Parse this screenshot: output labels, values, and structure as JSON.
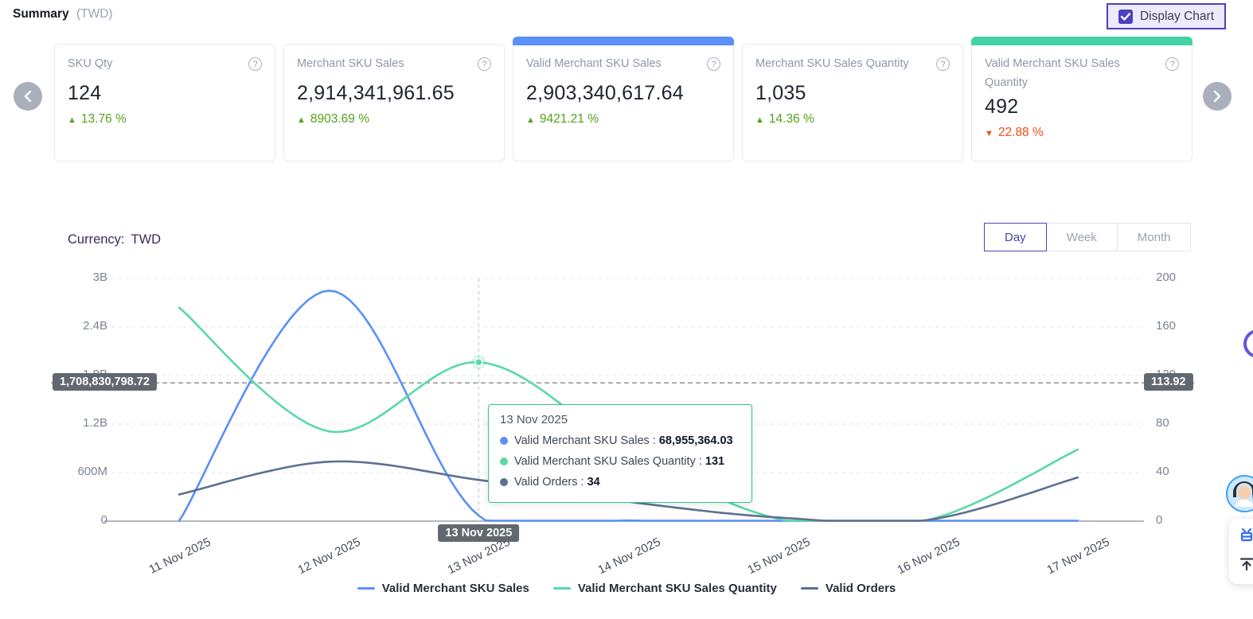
{
  "header": {
    "title": "Summary",
    "currency_suffix": "(TWD)",
    "display_chart_label": "Display Chart",
    "display_chart_checked": true
  },
  "theme": {
    "accent_purple": "#4b40c2",
    "blue": "#5B8FF9",
    "green": "#5AD8A6",
    "slate": "#5D7092",
    "up_green": "#53a318",
    "down_red": "#f04e12",
    "badge_gray": "#62686f",
    "tooltip_border": "#36c392"
  },
  "cards": [
    {
      "title": "SKU Qty",
      "value": "124",
      "arrow": "▲",
      "delta": "13.76 %",
      "direction": "up",
      "accent": ""
    },
    {
      "title": "Merchant SKU Sales",
      "value": "2,914,341,961.65",
      "arrow": "▲",
      "delta": "8903.69 %",
      "direction": "up",
      "accent": ""
    },
    {
      "title": "Valid Merchant SKU Sales",
      "value": "2,903,340,617.64",
      "arrow": "▲",
      "delta": "9421.21 %",
      "direction": "up",
      "accent": "#5B8FF9"
    },
    {
      "title": "Merchant SKU Sales Quantity",
      "value": "1,035",
      "arrow": "▲",
      "delta": "14.36 %",
      "direction": "up",
      "accent": ""
    },
    {
      "title": "Valid Merchant SKU Sales Quantity",
      "value": "492",
      "arrow": "▼",
      "delta": "22.88 %",
      "direction": "down",
      "accent": "#42d3a5"
    }
  ],
  "help_icon": "?",
  "chart_controls": {
    "currency_label": "Currency:",
    "currency_value": "TWD",
    "granularity": [
      {
        "label": "Day",
        "active": true
      },
      {
        "label": "Week",
        "active": false
      },
      {
        "label": "Month",
        "active": false
      }
    ]
  },
  "chart_data": {
    "type": "line",
    "x": [
      "11 Nov 2025",
      "12 Nov 2025",
      "13 Nov 2025",
      "14 Nov 2025",
      "15 Nov 2025",
      "16 Nov 2025",
      "17 Nov 2025"
    ],
    "series": [
      {
        "name": "Valid Merchant SKU Sales",
        "axis": "left",
        "color": "#5B8FF9",
        "values": [
          0,
          2850000000,
          68955364.03,
          8000000,
          3000000,
          2000000,
          5000000
        ]
      },
      {
        "name": "Valid Merchant SKU Sales Quantity",
        "axis": "right",
        "color": "#5AD8A6",
        "values": [
          176,
          74,
          131,
          57,
          2,
          1,
          59
        ],
        "marker_index": 2
      },
      {
        "name": "Valid Orders",
        "axis": "right",
        "color": "#5D7092",
        "values": [
          22,
          49,
          34,
          16,
          3,
          1,
          36
        ]
      }
    ],
    "left_axis": {
      "ticks": [
        "0",
        "600M",
        "1.2B",
        "1.8B",
        "2.4B",
        "3B"
      ],
      "max": 3000000000
    },
    "right_axis": {
      "ticks": [
        "0",
        "40",
        "80",
        "120",
        "160",
        "200"
      ],
      "max": 200
    },
    "grid": "dashed",
    "legend_position": "bottom"
  },
  "crosshair": {
    "left_value": "1,708,830,798.72",
    "right_value": "113.92",
    "date": "13 Nov 2025"
  },
  "tooltip": {
    "date": "13 Nov 2025",
    "rows": [
      {
        "label": "Valid Merchant SKU Sales",
        "value": "68,955,364.03",
        "color": "#5B8FF9"
      },
      {
        "label": "Valid Merchant SKU Sales Quantity",
        "value": "131",
        "color": "#5AD8A6"
      },
      {
        "label": "Valid Orders",
        "value": "34",
        "color": "#5D7092"
      }
    ]
  },
  "legend": [
    {
      "label": "Valid Merchant SKU Sales",
      "color": "#5B8FF9"
    },
    {
      "label": "Valid Merchant SKU Sales Quantity",
      "color": "#5AD8A6"
    },
    {
      "label": "Valid Orders",
      "color": "#5D7092"
    }
  ]
}
